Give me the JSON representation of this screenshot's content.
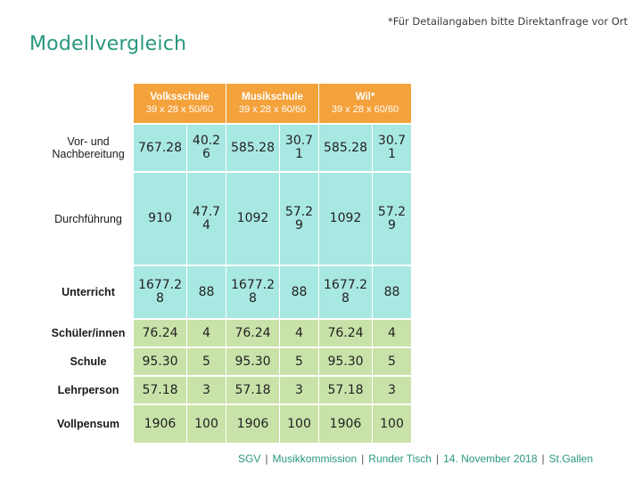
{
  "note": "*Für Detailangaben bitte Direktanfrage vor Ort",
  "title": "Modellvergleich",
  "table": {
    "headers": [
      {
        "name": "Volksschule",
        "dims": "39 x 28 x 50/60"
      },
      {
        "name": "Musikschule",
        "dims": "39 x 28 x 60/60"
      },
      {
        "name": "Wil*",
        "dims": "39 x 28 x 60/60"
      }
    ],
    "rows": [
      {
        "label": "Vor- und Nachbereitung",
        "cells": [
          "767.28",
          "40.2 6",
          "585.28",
          "30.7 1",
          "585.28",
          "30.7 1"
        ]
      },
      {
        "label": "Durchführung",
        "cells": [
          "910",
          "47.7 4",
          "1092",
          "57.2 9",
          "1092",
          "57.2 9"
        ]
      },
      {
        "label": "Unterricht",
        "cells": [
          "1677.2 8",
          "88",
          "1677.2 8",
          "88",
          "1677.2 8",
          "88"
        ]
      },
      {
        "label": "Schüler/innen",
        "cells": [
          "76.24",
          "4",
          "76.24",
          "4",
          "76.24",
          "4"
        ]
      },
      {
        "label": "Schule",
        "cells": [
          "95.30",
          "5",
          "95.30",
          "5",
          "95.30",
          "5"
        ]
      },
      {
        "label": "Lehrperson",
        "cells": [
          "57.18",
          "3",
          "57.18",
          "3",
          "57.18",
          "3"
        ]
      },
      {
        "label": "Vollpensum",
        "cells": [
          "1906",
          "100",
          "1906",
          "100",
          "1906",
          "100"
        ]
      }
    ]
  },
  "footer": {
    "items": [
      "SGV",
      "Musikkommission",
      "Runder Tisch",
      "14. November 2018",
      "St.Gallen"
    ],
    "separator": "|"
  }
}
